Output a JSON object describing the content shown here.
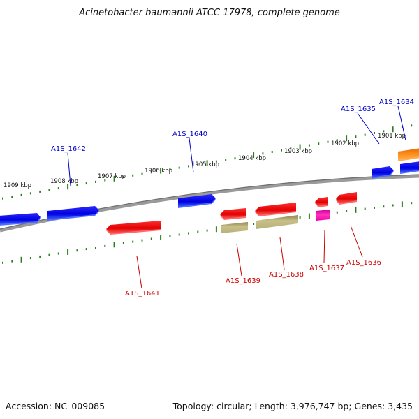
{
  "title": "Acinetobacter baumannii ATCC 17978, complete genome",
  "footer": {
    "accession": "Accession: NC_009085",
    "summary": "Topology: circular; Length: 3,976,747 bp; Genes: 3,435"
  },
  "colors": {
    "forward_gene": "#0000ee",
    "reverse_gene": "#ee0000",
    "forward_label": "#0000cc",
    "reverse_label": "#cc0000",
    "olive_feature": "#bdb76b",
    "magenta_feature": "#ee00aa",
    "orange_feature": "#ff8800",
    "tick": "#2a7d1e",
    "backbone": "#808080"
  },
  "kbp_ticks": [
    "1909 kbp",
    "1908 kbp",
    "1907 kbp",
    "1906 kbp",
    "1905 kbp",
    "1904 kbp",
    "1903 kbp",
    "1902 kbp",
    "1901 kbp"
  ],
  "forward_labels": [
    "A1S_1642",
    "A1S_1640",
    "A1S_1635",
    "A1S_1634"
  ],
  "reverse_labels": [
    "A1S_1641",
    "A1S_1639",
    "A1S_1638",
    "A1S_1637",
    "A1S_1636"
  ]
}
